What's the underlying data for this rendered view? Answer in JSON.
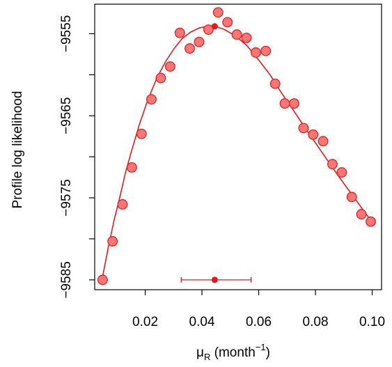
{
  "chart_data": {
    "type": "scatter",
    "ylabel": "Profile log likelihood",
    "xlabel": {
      "base": "μ",
      "subscript": "R",
      "unit_open": " (month",
      "superscript": "−1",
      "unit_close": ")"
    },
    "xlim": [
      0.0022,
      0.1033
    ],
    "ylim": [
      -9586.2,
      -9551.4
    ],
    "x_ticks": [
      {
        "value": 0.02,
        "label": "0.02"
      },
      {
        "value": 0.04,
        "label": "0.04"
      },
      {
        "value": 0.06,
        "label": "0.06"
      },
      {
        "value": 0.08,
        "label": "0.08"
      },
      {
        "value": 0.1,
        "label": "0.10"
      }
    ],
    "y_ticks": [
      {
        "value": -9585,
        "label": "−9585",
        "labeled": true
      },
      {
        "value": -9580,
        "label": "",
        "labeled": false
      },
      {
        "value": -9575,
        "label": "−9575",
        "labeled": true
      },
      {
        "value": -9570,
        "label": "",
        "labeled": false
      },
      {
        "value": -9565,
        "label": "−9565",
        "labeled": true
      },
      {
        "value": -9560,
        "label": "",
        "labeled": false
      },
      {
        "value": -9555,
        "label": "−9555",
        "labeled": true
      }
    ],
    "points": [
      {
        "x": 0.005,
        "y": -9585.0
      },
      {
        "x": 0.0085,
        "y": -9580.3
      },
      {
        "x": 0.012,
        "y": -9575.8
      },
      {
        "x": 0.0153,
        "y": -9571.3
      },
      {
        "x": 0.0187,
        "y": -9567.2
      },
      {
        "x": 0.0222,
        "y": -9563.0
      },
      {
        "x": 0.0255,
        "y": -9560.4
      },
      {
        "x": 0.0288,
        "y": -9559.0
      },
      {
        "x": 0.0322,
        "y": -9554.9
      },
      {
        "x": 0.0357,
        "y": -9556.8
      },
      {
        "x": 0.039,
        "y": -9556.0
      },
      {
        "x": 0.0423,
        "y": -9554.5
      },
      {
        "x": 0.0457,
        "y": -9552.4
      },
      {
        "x": 0.049,
        "y": -9553.6
      },
      {
        "x": 0.0523,
        "y": -9555.1
      },
      {
        "x": 0.0557,
        "y": -9555.5
      },
      {
        "x": 0.059,
        "y": -9557.3
      },
      {
        "x": 0.0625,
        "y": -9557.1
      },
      {
        "x": 0.0658,
        "y": -9561.1
      },
      {
        "x": 0.0692,
        "y": -9563.5
      },
      {
        "x": 0.0725,
        "y": -9563.5
      },
      {
        "x": 0.0758,
        "y": -9566.5
      },
      {
        "x": 0.0792,
        "y": -9567.3
      },
      {
        "x": 0.0827,
        "y": -9568.1
      },
      {
        "x": 0.086,
        "y": -9570.9
      },
      {
        "x": 0.0893,
        "y": -9571.9
      },
      {
        "x": 0.0928,
        "y": -9574.9
      },
      {
        "x": 0.0962,
        "y": -9577.0
      },
      {
        "x": 0.0995,
        "y": -9577.9
      }
    ],
    "fitted_curve": [
      {
        "x": 0.005,
        "y": -9584.6
      },
      {
        "x": 0.007,
        "y": -9581.0
      },
      {
        "x": 0.009,
        "y": -9577.8
      },
      {
        "x": 0.011,
        "y": -9575.0
      },
      {
        "x": 0.013,
        "y": -9572.0
      },
      {
        "x": 0.015,
        "y": -9569.5
      },
      {
        "x": 0.018,
        "y": -9566.0
      },
      {
        "x": 0.021,
        "y": -9563.0
      },
      {
        "x": 0.024,
        "y": -9560.5
      },
      {
        "x": 0.027,
        "y": -9558.5
      },
      {
        "x": 0.03,
        "y": -9556.9
      },
      {
        "x": 0.033,
        "y": -9555.6
      },
      {
        "x": 0.036,
        "y": -9554.8
      },
      {
        "x": 0.039,
        "y": -9554.3
      },
      {
        "x": 0.042,
        "y": -9554.1
      },
      {
        "x": 0.0445,
        "y": -9554.1
      },
      {
        "x": 0.048,
        "y": -9554.5
      },
      {
        "x": 0.052,
        "y": -9555.3
      },
      {
        "x": 0.056,
        "y": -9556.5
      },
      {
        "x": 0.06,
        "y": -9558.2
      },
      {
        "x": 0.064,
        "y": -9560.0
      },
      {
        "x": 0.068,
        "y": -9562.2
      },
      {
        "x": 0.072,
        "y": -9564.2
      },
      {
        "x": 0.076,
        "y": -9566.3
      },
      {
        "x": 0.08,
        "y": -9568.3
      },
      {
        "x": 0.084,
        "y": -9570.3
      },
      {
        "x": 0.088,
        "y": -9572.3
      },
      {
        "x": 0.092,
        "y": -9574.2
      },
      {
        "x": 0.096,
        "y": -9576.1
      },
      {
        "x": 0.1,
        "y": -9578.0
      }
    ],
    "mle": {
      "x": 0.0445,
      "y": -9554.1
    },
    "confidence_interval": {
      "lower": 0.0327,
      "upper": 0.0573,
      "estimate": 0.0445,
      "y": -9585.0
    },
    "colors": {
      "point_fill": "#f77777",
      "point_stroke": "#e22222",
      "curve": "#e31a1c",
      "mle_marker": "#e31a1c",
      "ci": "#e31a1c",
      "axis": "#000000"
    },
    "grid": false
  }
}
